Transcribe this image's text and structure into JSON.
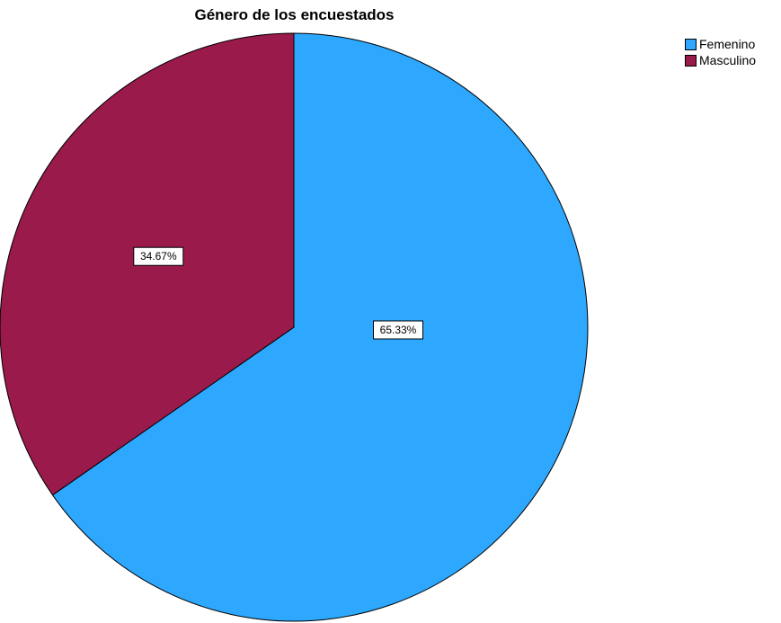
{
  "chart_data": {
    "type": "pie",
    "title": "Género de los encuestados",
    "categories": [
      "Femenino",
      "Masculino"
    ],
    "values": [
      65.33,
      34.67
    ],
    "data_labels": [
      "65.33%",
      "34.67%"
    ],
    "colors": [
      "#2EA8FF",
      "#991A4B"
    ],
    "start_angle": "12 o'clock",
    "direction": "clockwise",
    "legend_position": "top-right",
    "grid": false
  },
  "legend": {
    "items": [
      {
        "label": "Femenino",
        "color": "#2EA8FF"
      },
      {
        "label": "Masculino",
        "color": "#991A4B"
      }
    ]
  }
}
